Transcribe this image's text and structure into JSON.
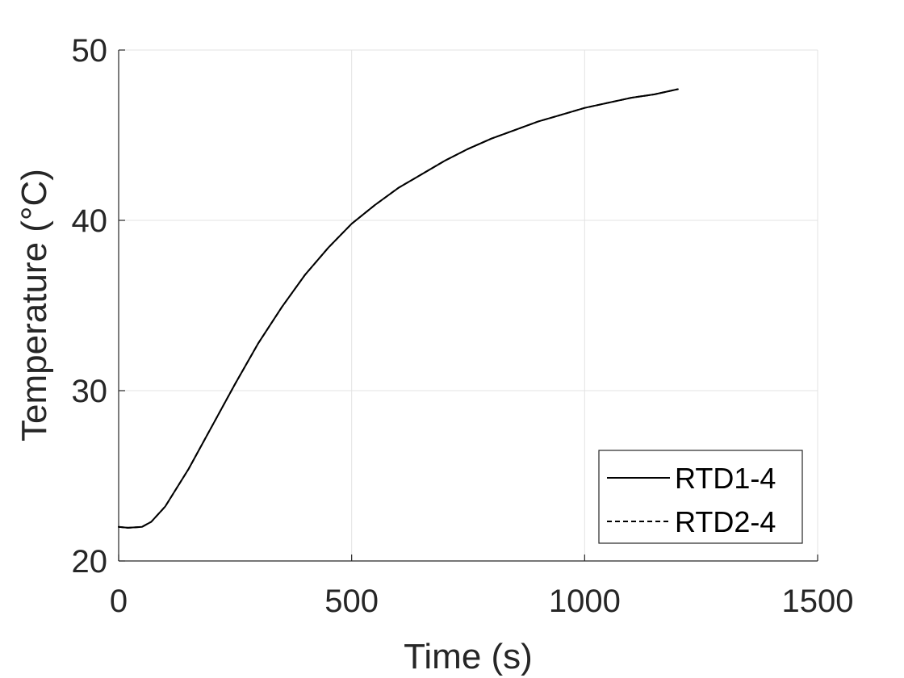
{
  "chart_data": {
    "type": "line",
    "title": "",
    "xlabel": "Time (s)",
    "ylabel": "Temperature (°C)",
    "xlim": [
      0,
      1500
    ],
    "ylim": [
      20,
      50
    ],
    "xticks": [
      0,
      500,
      1000,
      1500
    ],
    "yticks": [
      20,
      30,
      40,
      50
    ],
    "xtick_labels": [
      "0",
      "500",
      "1000",
      "1500"
    ],
    "ytick_labels": [
      "20",
      "30",
      "40",
      "50"
    ],
    "grid": true,
    "legend_position": "bottom-right",
    "series": [
      {
        "name": "RTD1-4",
        "style": "solid",
        "color": "#000000",
        "x": [
          0,
          20,
          50,
          70,
          100,
          150,
          200,
          250,
          300,
          350,
          400,
          450,
          500,
          550,
          600,
          650,
          700,
          750,
          800,
          850,
          900,
          950,
          1000,
          1050,
          1100,
          1150,
          1200
        ],
        "y": [
          22.0,
          21.95,
          22.0,
          22.3,
          23.2,
          25.4,
          27.9,
          30.4,
          32.8,
          34.9,
          36.8,
          38.4,
          39.8,
          40.9,
          41.9,
          42.7,
          43.5,
          44.2,
          44.8,
          45.3,
          45.8,
          46.2,
          46.6,
          46.9,
          47.2,
          47.4,
          47.7
        ]
      },
      {
        "name": "RTD2-4",
        "style": "dashed",
        "color": "#000000",
        "x": [
          0,
          20,
          50,
          70,
          100,
          150,
          200,
          250,
          300,
          350,
          400,
          450,
          500,
          550,
          600,
          650,
          700,
          750,
          800,
          850,
          900,
          950,
          1000,
          1050,
          1100,
          1150,
          1200
        ],
        "y": [
          22.0,
          21.95,
          22.0,
          22.3,
          23.2,
          25.4,
          27.9,
          30.4,
          32.8,
          34.9,
          36.8,
          38.4,
          39.8,
          40.9,
          41.9,
          42.7,
          43.5,
          44.2,
          44.8,
          45.3,
          45.8,
          46.2,
          46.6,
          46.9,
          47.2,
          47.4,
          47.7
        ]
      }
    ]
  }
}
